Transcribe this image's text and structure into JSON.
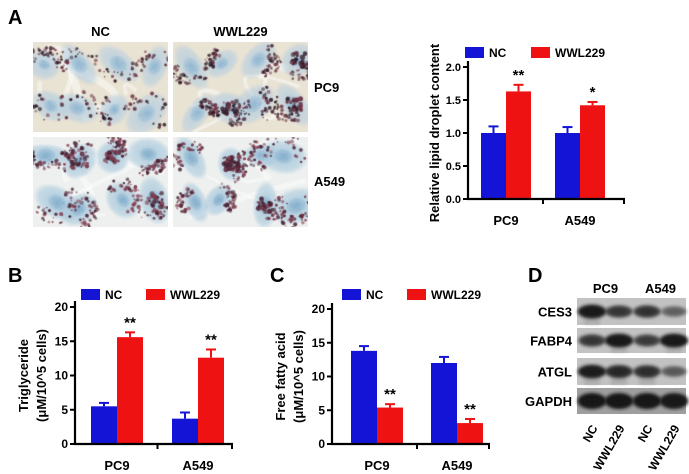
{
  "figure": {
    "panel_a": {
      "label": "A",
      "col_headers": [
        "NC",
        "WWL229"
      ],
      "row_labels": [
        "PC9",
        "A549"
      ],
      "micrographs": [
        {
          "id": "pc9-nc",
          "row": "PC9",
          "col": "NC",
          "droplet_level": 1.0
        },
        {
          "id": "pc9-wwl229",
          "row": "PC9",
          "col": "WWL229",
          "droplet_level": 1.6
        },
        {
          "id": "a549-nc",
          "row": "A549",
          "col": "NC",
          "droplet_level": 1.45
        },
        {
          "id": "a549-wwl229",
          "row": "A549",
          "col": "WWL229",
          "droplet_level": 1.5
        }
      ]
    },
    "panel_b": {
      "label": "B"
    },
    "panel_c": {
      "label": "C"
    },
    "panel_d": {
      "label": "D",
      "col_headers": [
        "PC9",
        "A549"
      ],
      "rows": [
        {
          "protein": "CES3",
          "band_intensities": [
            0.95,
            0.65,
            0.68,
            0.3
          ]
        },
        {
          "protein": "FABP4",
          "band_intensities": [
            0.65,
            0.97,
            0.6,
            0.97
          ]
        },
        {
          "protein": "ATGL",
          "band_intensities": [
            0.92,
            0.78,
            0.72,
            0.35
          ]
        },
        {
          "protein": "GAPDH",
          "band_intensities": [
            1.0,
            1.0,
            1.0,
            0.97
          ]
        }
      ],
      "lane_labels": [
        "NC",
        "WWL229",
        "NC",
        "WWL229"
      ]
    }
  },
  "chart_data": [
    {
      "id": "lipid_droplet",
      "panel": "A",
      "type": "bar",
      "ylabel_lines": [
        "Relative lipid droplet content"
      ],
      "categories": [
        "PC9",
        "A549"
      ],
      "series": [
        {
          "name": "NC",
          "color": "#1414d6",
          "values": [
            1.0,
            1.0
          ],
          "errors": [
            0.1,
            0.09
          ]
        },
        {
          "name": "WWL229",
          "color": "#ee1212",
          "values": [
            1.63,
            1.42
          ],
          "errors": [
            0.1,
            0.05
          ]
        }
      ],
      "significance": [
        {
          "category": "PC9",
          "series": "WWL229",
          "mark": "**"
        },
        {
          "category": "A549",
          "series": "WWL229",
          "mark": "*"
        }
      ],
      "ylim": [
        0,
        2.0
      ],
      "yticks": [
        "0.0",
        "0.5",
        "1.0",
        "1.5",
        "2.0"
      ],
      "legend_position": "top",
      "grid": false
    },
    {
      "id": "triglyceride",
      "panel": "B",
      "type": "bar",
      "ylabel_lines": [
        "Triglyceride",
        "(μM/10^5 cells)"
      ],
      "categories": [
        "PC9",
        "A549"
      ],
      "series": [
        {
          "name": "NC",
          "color": "#1414d6",
          "values": [
            5.5,
            3.7
          ],
          "errors": [
            0.5,
            0.9
          ]
        },
        {
          "name": "WWL229",
          "color": "#ee1212",
          "values": [
            15.6,
            12.6
          ],
          "errors": [
            0.7,
            1.2
          ]
        }
      ],
      "significance": [
        {
          "category": "PC9",
          "series": "WWL229",
          "mark": "**"
        },
        {
          "category": "A549",
          "series": "WWL229",
          "mark": "**"
        }
      ],
      "ylim": [
        0,
        20
      ],
      "yticks": [
        "0",
        "5",
        "10",
        "15",
        "20"
      ],
      "legend_position": "top",
      "grid": false
    },
    {
      "id": "free_fatty_acid",
      "panel": "C",
      "type": "bar",
      "ylabel_lines": [
        "Free fatty acid",
        "(μM/10^5 cells)"
      ],
      "categories": [
        "PC9",
        "A549"
      ],
      "series": [
        {
          "name": "NC",
          "color": "#1414d6",
          "values": [
            13.8,
            12.0
          ],
          "errors": [
            0.7,
            0.9
          ]
        },
        {
          "name": "WWL229",
          "color": "#ee1212",
          "values": [
            5.4,
            3.1
          ],
          "errors": [
            0.5,
            0.6
          ]
        }
      ],
      "significance": [
        {
          "category": "PC9",
          "series": "WWL229",
          "mark": "**"
        },
        {
          "category": "A549",
          "series": "WWL229",
          "mark": "**"
        }
      ],
      "ylim": [
        0,
        20
      ],
      "yticks": [
        "0",
        "5",
        "10",
        "15",
        "20"
      ],
      "legend_position": "top",
      "grid": false
    }
  ],
  "colors": {
    "nc_blue": "#1414d6",
    "wwl229_red": "#ee1212",
    "axis": "#000000",
    "micro_pc9": {
      "bg": "#e9e3d4",
      "cell": "#b7cfe0",
      "nucleus": "#93b8d2",
      "droplet_dark": "#33202c",
      "droplet_red": "#6e3646"
    },
    "micro_a549": {
      "bg": "#edf0ef",
      "cell": "#a9c9dd",
      "nucleus": "#86b0cd",
      "droplet_dark": "#4a2436",
      "droplet_red": "#824052"
    },
    "blot_strip": "#c2c2c2",
    "blot_strip_gapdh": "#9e9e9e",
    "band": "#121212"
  }
}
